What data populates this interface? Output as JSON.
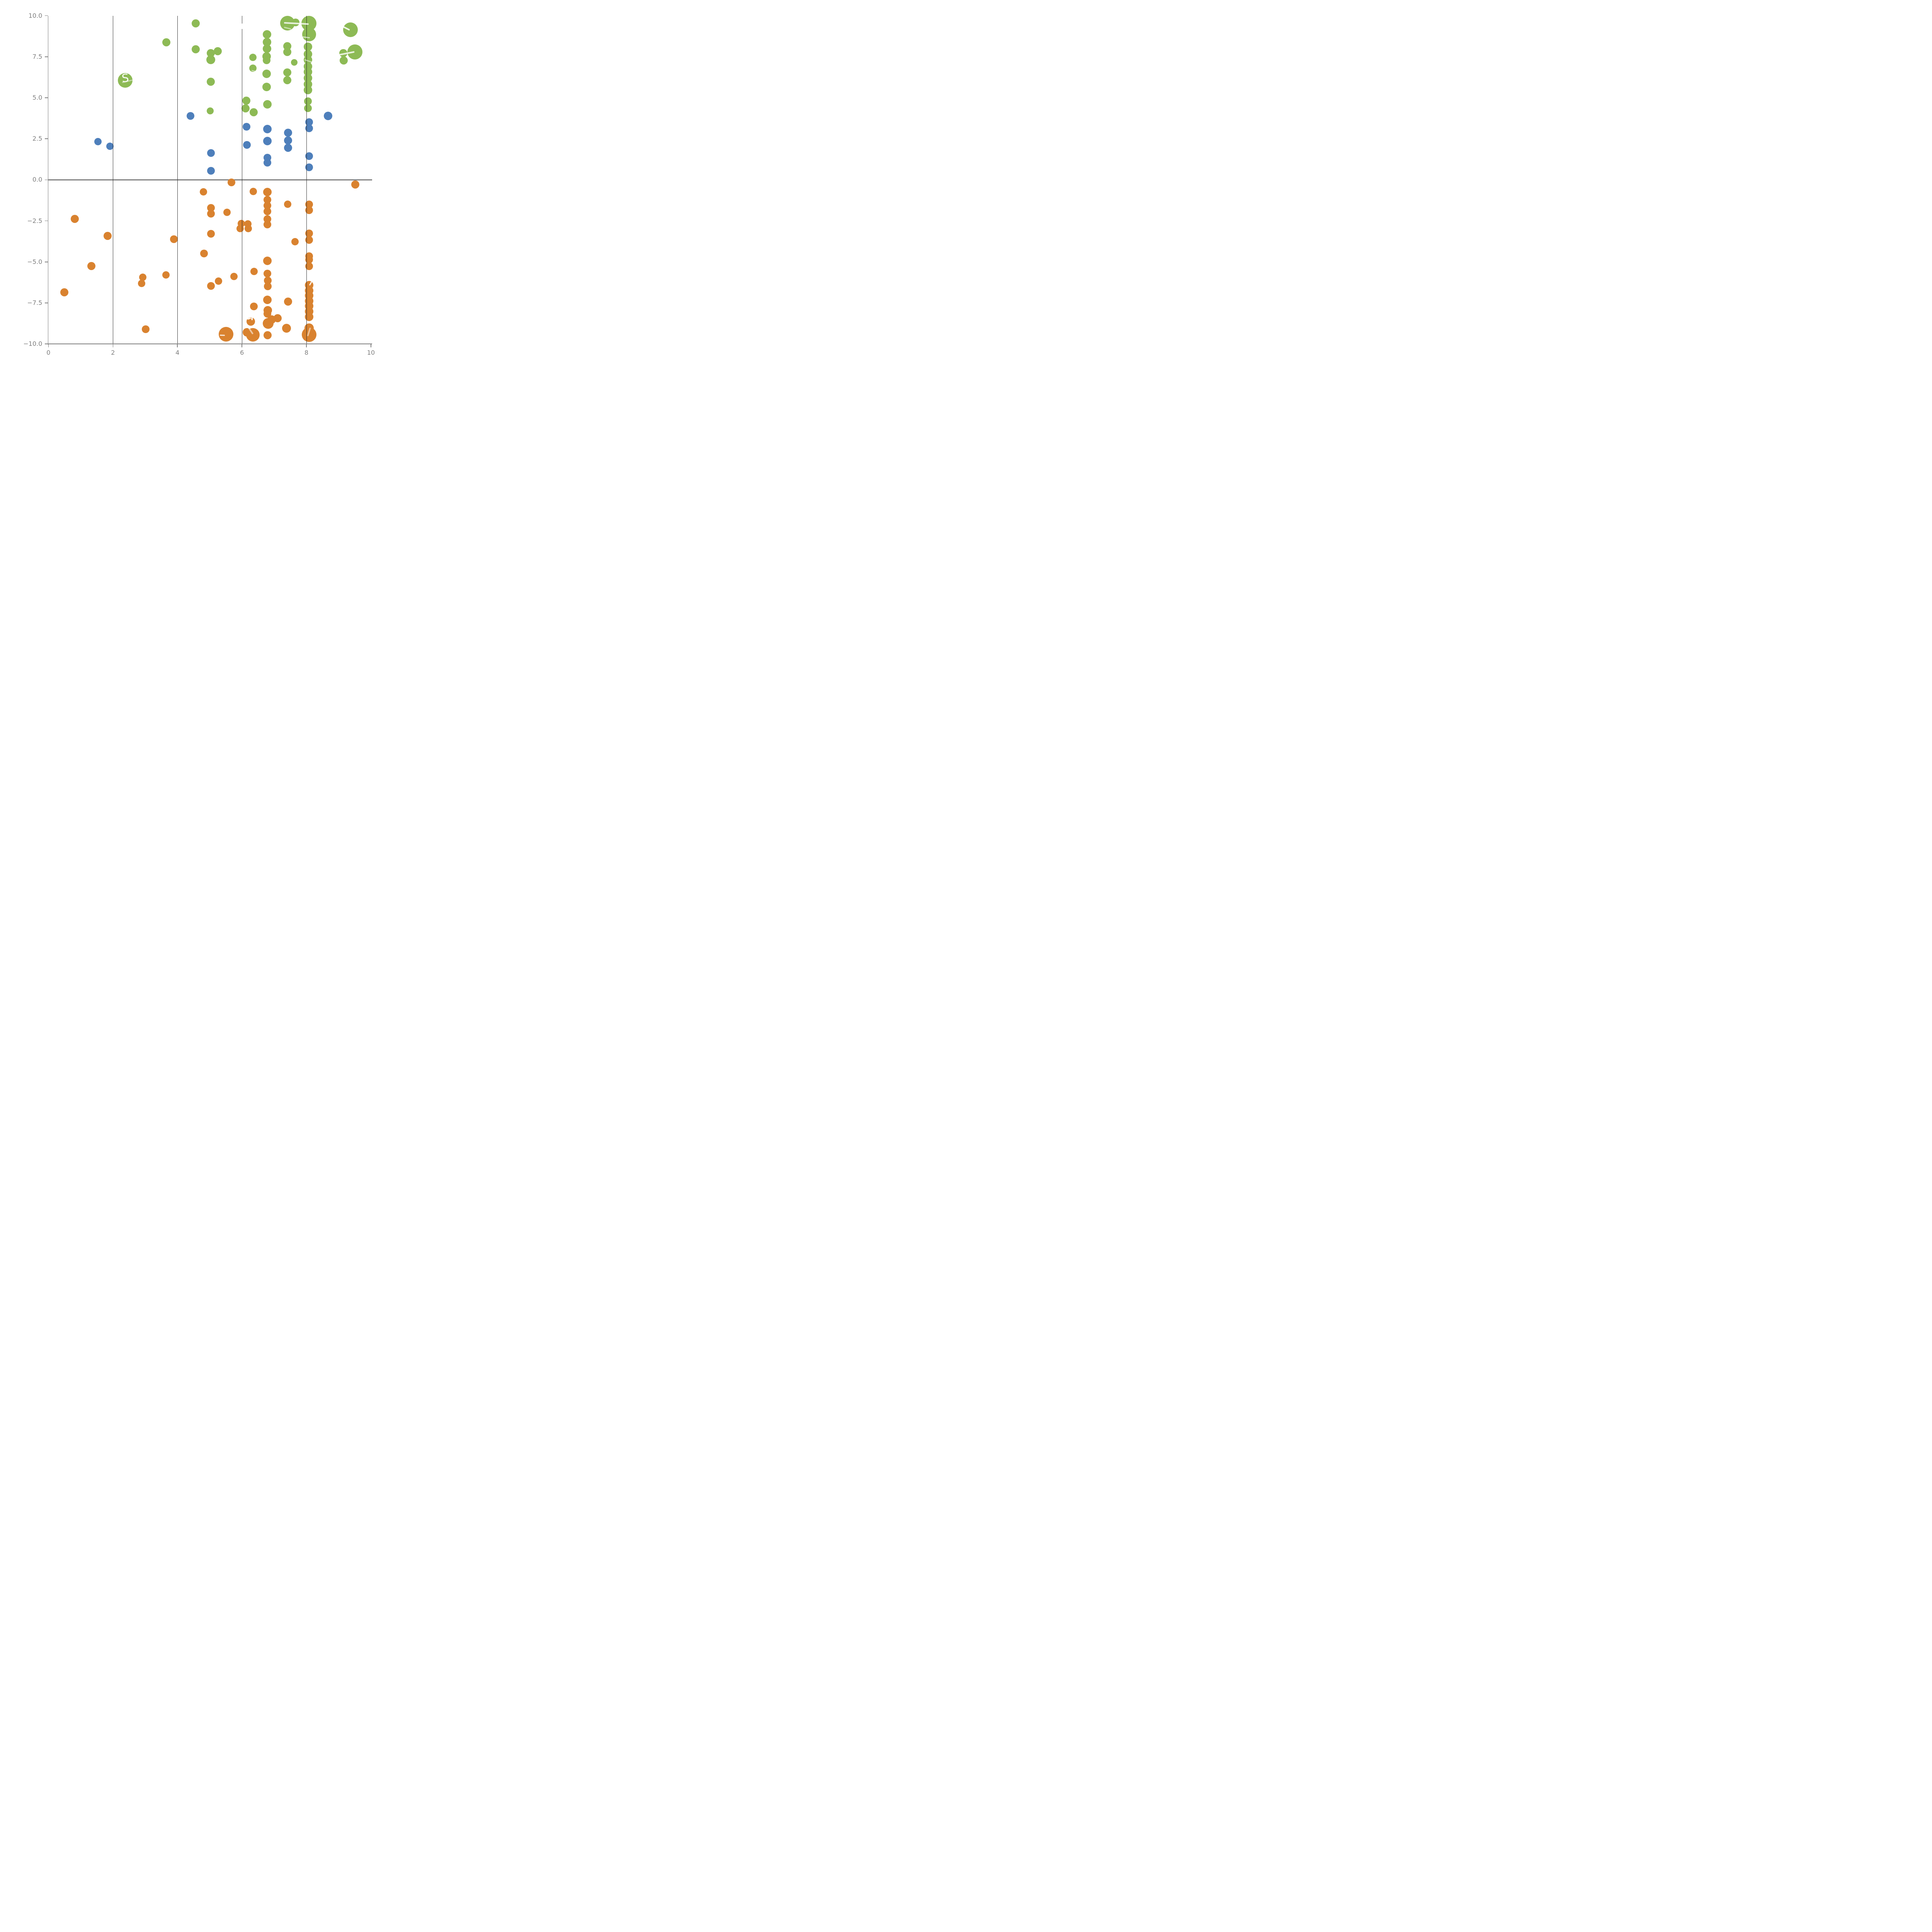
{
  "figure": {
    "background": "#ffffff"
  },
  "chart_data": {
    "type": "scatter",
    "title": "",
    "xlabel": "",
    "ylabel": "",
    "xlim": [
      0,
      10
    ],
    "ylim": [
      -10,
      10
    ],
    "grid": "vertical-only",
    "legend": "none",
    "x_ticks": [
      {
        "value": 0,
        "label": "0"
      },
      {
        "value": 2,
        "label": "2"
      },
      {
        "value": 4,
        "label": "4"
      },
      {
        "value": 6,
        "label": "6"
      },
      {
        "value": 8,
        "label": "8"
      },
      {
        "value": 10,
        "label": "10"
      }
    ],
    "y_ticks": [
      {
        "value": 10,
        "label": "10.0"
      },
      {
        "value": 7.5,
        "label": "7.5"
      },
      {
        "value": 5,
        "label": "5.0"
      },
      {
        "value": 2.5,
        "label": "2.5"
      },
      {
        "value": 0,
        "label": "0.0"
      },
      {
        "value": -2.5,
        "label": "−2.5"
      },
      {
        "value": -5,
        "label": "−5.0"
      },
      {
        "value": -7.5,
        "label": "−7.5"
      },
      {
        "value": -10,
        "label": "−10.0"
      }
    ],
    "gridlines_x": [
      2,
      4,
      6,
      8
    ],
    "zero_line_y": 0,
    "colors": {
      "green": "#8dba55",
      "blue": "#4e7fbb",
      "orange": "#d9822f",
      "axis": "#808080",
      "grid": "#2d2d2d",
      "tick_label": "#808080",
      "annotation": "#ffffff"
    },
    "series": [
      {
        "name": "green",
        "color_key": "green",
        "points": [
          [
            2.38,
            6.06,
            19
          ],
          [
            4.57,
            9.52,
            10.5
          ],
          [
            3.66,
            8.37,
            10.5
          ],
          [
            4.57,
            7.96,
            10.5
          ],
          [
            5.03,
            7.73,
            10.5
          ],
          [
            5.25,
            7.84,
            10.5
          ],
          [
            5.03,
            7.31,
            11.5
          ],
          [
            5.03,
            5.98,
            10.5
          ],
          [
            5.02,
            4.19,
            9
          ],
          [
            6.34,
            7.45,
            9.5
          ],
          [
            6.34,
            6.8,
            9.5
          ],
          [
            6.14,
            4.83,
            10.5
          ],
          [
            6.11,
            4.36,
            10.5
          ],
          [
            6.36,
            4.12,
            10.5
          ],
          [
            6.78,
            8.87,
            11
          ],
          [
            6.78,
            8.4,
            11
          ],
          [
            6.78,
            7.98,
            11
          ],
          [
            6.76,
            7.51,
            11
          ],
          [
            6.77,
            7.28,
            10
          ],
          [
            6.76,
            6.46,
            11
          ],
          [
            6.76,
            5.66,
            11
          ],
          [
            6.79,
            4.6,
            11
          ],
          [
            7.4,
            8.15,
            10.5
          ],
          [
            7.4,
            7.79,
            10.5
          ],
          [
            7.41,
            6.55,
            10.5
          ],
          [
            7.41,
            6.08,
            10.5
          ],
          [
            7.62,
            7.16,
            8.5
          ],
          [
            7.41,
            9.55,
            19
          ],
          [
            7.66,
            9.59,
            10
          ],
          [
            8.08,
            9.53,
            19.5
          ],
          [
            8.08,
            8.86,
            18
          ],
          [
            8.05,
            8.1,
            11
          ],
          [
            8.05,
            7.67,
            11
          ],
          [
            8.05,
            7.3,
            11
          ],
          [
            8.05,
            6.91,
            11
          ],
          [
            8.05,
            6.58,
            11
          ],
          [
            8.05,
            6.2,
            11
          ],
          [
            8.05,
            5.82,
            11
          ],
          [
            8.05,
            5.48,
            11
          ],
          [
            8.05,
            4.78,
            10
          ],
          [
            8.05,
            4.37,
            10
          ],
          [
            9.36,
            9.14,
            19
          ],
          [
            9.5,
            7.79,
            19.5
          ],
          [
            9.14,
            7.72,
            10.5
          ],
          [
            9.15,
            7.28,
            10.5
          ]
        ]
      },
      {
        "name": "blue",
        "color_key": "blue",
        "points": [
          [
            1.54,
            2.33,
            9.5
          ],
          [
            1.91,
            2.05,
            9.5
          ],
          [
            4.4,
            3.89,
            10
          ],
          [
            5.04,
            1.63,
            10
          ],
          [
            5.04,
            0.54,
            10
          ],
          [
            6.14,
            3.23,
            10
          ],
          [
            6.15,
            2.12,
            10
          ],
          [
            6.79,
            3.09,
            11
          ],
          [
            6.79,
            2.37,
            11
          ],
          [
            6.79,
            1.36,
            10
          ],
          [
            6.79,
            1.04,
            10
          ],
          [
            7.43,
            2.86,
            10.5
          ],
          [
            7.43,
            2.41,
            10.5
          ],
          [
            7.43,
            1.95,
            10.5
          ],
          [
            8.08,
            3.51,
            10
          ],
          [
            8.08,
            3.15,
            10
          ],
          [
            8.08,
            1.44,
            10
          ],
          [
            8.08,
            0.77,
            10
          ],
          [
            8.67,
            3.89,
            11
          ]
        ]
      },
      {
        "name": "orange",
        "color_key": "orange",
        "points": [
          [
            5.68,
            -0.16,
            10
          ],
          [
            4.81,
            -0.73,
            9.5
          ],
          [
            5.04,
            -1.71,
            10
          ],
          [
            5.04,
            -2.06,
            10
          ],
          [
            5.54,
            -1.97,
            9.5
          ],
          [
            6.35,
            -0.71,
            9.5
          ],
          [
            6.79,
            -0.75,
            11
          ],
          [
            6.79,
            -1.22,
            10
          ],
          [
            6.79,
            -1.57,
            10
          ],
          [
            6.79,
            -1.91,
            10
          ],
          [
            6.79,
            -2.4,
            10
          ],
          [
            6.79,
            -2.71,
            10
          ],
          [
            9.51,
            -0.28,
            10.5
          ],
          [
            0.82,
            -2.38,
            10.5
          ],
          [
            1.83,
            -3.42,
            10.5
          ],
          [
            1.33,
            -5.26,
            10.5
          ],
          [
            0.49,
            -6.85,
            10.5
          ],
          [
            2.93,
            -5.94,
            9.5
          ],
          [
            2.89,
            -6.32,
            9.5
          ],
          [
            3.01,
            -9.09,
            10
          ],
          [
            3.89,
            -3.62,
            10
          ],
          [
            5.04,
            -3.29,
            10
          ],
          [
            4.82,
            -4.48,
            10
          ],
          [
            3.64,
            -5.8,
            9.5
          ],
          [
            5.04,
            -6.46,
            10
          ],
          [
            5.27,
            -6.16,
            9.5
          ],
          [
            5.75,
            -5.88,
            9.5
          ],
          [
            6.37,
            -5.59,
            9.5
          ],
          [
            6.37,
            -7.71,
            10
          ],
          [
            5.98,
            -2.66,
            9.5
          ],
          [
            6.18,
            -2.68,
            9.5
          ],
          [
            5.95,
            -2.97,
            9.5
          ],
          [
            6.19,
            -2.98,
            9.5
          ],
          [
            7.42,
            -1.49,
            9.5
          ],
          [
            8.08,
            -1.49,
            10
          ],
          [
            8.08,
            -1.84,
            10
          ],
          [
            6.79,
            -4.93,
            11
          ],
          [
            6.79,
            -5.71,
            10
          ],
          [
            6.8,
            -6.14,
            10
          ],
          [
            6.8,
            -6.49,
            10
          ],
          [
            6.79,
            -7.31,
            11
          ],
          [
            6.8,
            -7.95,
            11
          ],
          [
            6.79,
            -8.16,
            10
          ],
          [
            6.81,
            -8.74,
            14
          ],
          [
            6.92,
            -8.52,
            11
          ],
          [
            7.11,
            -8.44,
            10.5
          ],
          [
            6.79,
            -9.46,
            10.5
          ],
          [
            6.27,
            -8.64,
            11
          ],
          [
            6.15,
            -9.3,
            11
          ],
          [
            6.34,
            -9.44,
            17.5
          ],
          [
            5.51,
            -9.4,
            19
          ],
          [
            7.43,
            -7.42,
            10.5
          ],
          [
            7.38,
            -9.05,
            11.5
          ],
          [
            7.65,
            -3.77,
            9.5
          ],
          [
            8.08,
            -3.27,
            10
          ],
          [
            8.08,
            -3.67,
            10
          ],
          [
            8.08,
            -4.64,
            10
          ],
          [
            8.08,
            -4.87,
            10
          ],
          [
            8.08,
            -5.27,
            10
          ],
          [
            8.08,
            -6.41,
            11
          ],
          [
            8.08,
            -6.74,
            11
          ],
          [
            8.08,
            -7.06,
            11
          ],
          [
            8.08,
            -7.38,
            11
          ],
          [
            8.08,
            -7.69,
            11
          ],
          [
            8.08,
            -8.01,
            11
          ],
          [
            8.08,
            -8.35,
            11
          ],
          [
            8.08,
            -9.02,
            12
          ],
          [
            8.08,
            -9.44,
            19
          ]
        ]
      }
    ],
    "annotations": [
      {
        "kind": "text",
        "name": "white-letter-s",
        "text": "S",
        "x": 2.4,
        "y": 6.17,
        "size": 29,
        "rot": -6,
        "alpha": 0.96
      },
      {
        "kind": "bar",
        "name": "white-line-fragment",
        "x": 2.28,
        "y": 5.92,
        "len": 33,
        "thick": 3,
        "rot": -13,
        "alpha": 0.45
      },
      {
        "kind": "bar",
        "name": "white-line-fragment",
        "x": 7.3,
        "y": 9.57,
        "len": 64,
        "thick": 3.5,
        "rot": 3,
        "alpha": 0.8
      },
      {
        "kind": "bar",
        "name": "white-line-fragment",
        "x": 7.3,
        "y": 9.3,
        "len": 19,
        "thick": 3,
        "rot": 14,
        "alpha": 0.5
      },
      {
        "kind": "bar",
        "name": "white-line-fragment",
        "x": 7.88,
        "y": 8.7,
        "len": 19,
        "thick": 3,
        "rot": 7,
        "alpha": 0.6
      },
      {
        "kind": "bar",
        "name": "white-line-fragment",
        "x": 7.94,
        "y": 7.32,
        "len": 26,
        "thick": 3,
        "rot": 18,
        "alpha": 0.5
      },
      {
        "kind": "bar",
        "name": "white-line-fragment",
        "x": 6.3,
        "y": 6.66,
        "len": 14,
        "thick": 2.5,
        "rot": 12,
        "alpha": 0.5
      },
      {
        "kind": "bar",
        "name": "white-leader-line",
        "x": 9.06,
        "y": 9.4,
        "len": 26,
        "thick": 3.5,
        "rot": 27,
        "alpha": 0.85
      },
      {
        "kind": "dot",
        "name": "white-notch",
        "x": 9.19,
        "y": 9.64,
        "r": 7,
        "alpha": 1
      },
      {
        "kind": "bar",
        "name": "white-leader-line",
        "x": 9.0,
        "y": 7.62,
        "len": 41,
        "thick": 3.5,
        "rot": -11,
        "alpha": 0.8
      },
      {
        "kind": "rect",
        "name": "white-gridline-gap",
        "x": 6.0,
        "y": 9.52,
        "w": 8,
        "h": 14,
        "alpha": 1
      },
      {
        "kind": "bar",
        "name": "white-line-fragment",
        "x": 5.31,
        "y": -9.46,
        "len": 13,
        "thick": 3,
        "rot": 2,
        "alpha": 0.8
      },
      {
        "kind": "bar",
        "name": "white-notch-bar",
        "x": 6.31,
        "y": -8.56,
        "len": 12,
        "thick": 3.5,
        "rot": -90,
        "alpha": 0.9
      },
      {
        "kind": "bar",
        "name": "white-notch-bar",
        "x": 6.17,
        "y": -8.48,
        "len": 10,
        "thick": 3.5,
        "rot": -20,
        "alpha": 0.9
      },
      {
        "kind": "bar",
        "name": "white-line-fragment",
        "x": 6.17,
        "y": -8.88,
        "len": 26,
        "thick": 4,
        "rot": 56,
        "alpha": 0.55
      },
      {
        "kind": "bar",
        "name": "white-line-fragment",
        "x": 8.12,
        "y": -9.0,
        "len": 23,
        "thick": 4,
        "rot": 107,
        "alpha": 0.5
      },
      {
        "kind": "bar",
        "name": "white-line-fragment",
        "x": 8.1,
        "y": -6.42,
        "len": 11,
        "thick": 3,
        "rot": -60,
        "alpha": 0.9
      }
    ]
  }
}
